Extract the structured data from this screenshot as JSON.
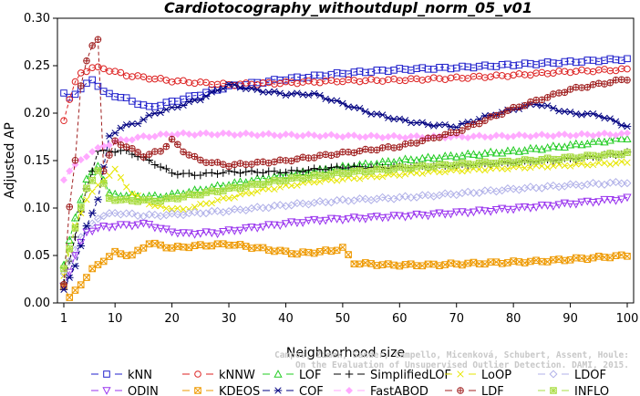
{
  "chart_data": {
    "type": "line",
    "title": "Cardiotocography_withoutdupl_norm_05_v01",
    "xlabel": "Neighborhood size",
    "ylabel": "Adjusted AP",
    "xlim": [
      1,
      100
    ],
    "ylim": [
      0.0,
      0.3
    ],
    "x_ticks": [
      "1",
      "10",
      "20",
      "30",
      "40",
      "50",
      "60",
      "70",
      "80",
      "90",
      "100"
    ],
    "y_ticks": [
      "0.00",
      "0.05",
      "0.10",
      "0.15",
      "0.20",
      "0.25",
      "0.30"
    ],
    "grid": false,
    "legend_position": "bottom",
    "watermark": "Campos, Zimek, Sander, Campello, Micenková, Schubert, Assent, Houle: On the Evaluation of Unsupervised Outlier Detection. DAMI, 2015.",
    "series": [
      {
        "name": "kNN",
        "color": "#2222cc",
        "marker": "square",
        "line": "dashed",
        "anchors": [
          [
            1,
            0.22
          ],
          [
            2,
            0.217
          ],
          [
            4,
            0.225
          ],
          [
            6,
            0.236
          ],
          [
            8,
            0.222
          ],
          [
            12,
            0.215
          ],
          [
            16,
            0.206
          ],
          [
            20,
            0.212
          ],
          [
            25,
            0.22
          ],
          [
            30,
            0.228
          ],
          [
            40,
            0.236
          ],
          [
            50,
            0.242
          ],
          [
            60,
            0.246
          ],
          [
            70,
            0.248
          ],
          [
            80,
            0.251
          ],
          [
            90,
            0.254
          ],
          [
            100,
            0.257
          ]
        ]
      },
      {
        "name": "kNNW",
        "color": "#dd2222",
        "marker": "circle",
        "line": "dashed",
        "anchors": [
          [
            1,
            0.193
          ],
          [
            2,
            0.215
          ],
          [
            3,
            0.232
          ],
          [
            4,
            0.242
          ],
          [
            6,
            0.248
          ],
          [
            8,
            0.247
          ],
          [
            12,
            0.24
          ],
          [
            20,
            0.234
          ],
          [
            30,
            0.23
          ],
          [
            40,
            0.232
          ],
          [
            50,
            0.234
          ],
          [
            60,
            0.235
          ],
          [
            70,
            0.237
          ],
          [
            80,
            0.24
          ],
          [
            90,
            0.244
          ],
          [
            100,
            0.246
          ]
        ]
      },
      {
        "name": "LOF",
        "color": "#22cc22",
        "marker": "triangle-up",
        "line": "dashed",
        "anchors": [
          [
            1,
            0.04
          ],
          [
            3,
            0.09
          ],
          [
            5,
            0.13
          ],
          [
            7,
            0.145
          ],
          [
            9,
            0.115
          ],
          [
            12,
            0.113
          ],
          [
            18,
            0.112
          ],
          [
            24,
            0.118
          ],
          [
            30,
            0.125
          ],
          [
            40,
            0.135
          ],
          [
            50,
            0.143
          ],
          [
            60,
            0.15
          ],
          [
            70,
            0.155
          ],
          [
            80,
            0.16
          ],
          [
            90,
            0.166
          ],
          [
            100,
            0.174
          ]
        ]
      },
      {
        "name": "SimplifiedLOF",
        "color": "#000000",
        "marker": "plus",
        "line": "dashed",
        "anchors": [
          [
            1,
            0.02
          ],
          [
            3,
            0.07
          ],
          [
            5,
            0.12
          ],
          [
            7,
            0.16
          ],
          [
            9,
            0.16
          ],
          [
            12,
            0.16
          ],
          [
            16,
            0.15
          ],
          [
            20,
            0.137
          ],
          [
            24,
            0.135
          ],
          [
            30,
            0.138
          ],
          [
            40,
            0.138
          ],
          [
            50,
            0.143
          ],
          [
            60,
            0.143
          ],
          [
            70,
            0.145
          ],
          [
            80,
            0.148
          ],
          [
            90,
            0.152
          ],
          [
            100,
            0.158
          ]
        ]
      },
      {
        "name": "LoOP",
        "color": "#e6e600",
        "marker": "x",
        "line": "dashed",
        "anchors": [
          [
            1,
            0.03
          ],
          [
            3,
            0.08
          ],
          [
            5,
            0.11
          ],
          [
            8,
            0.13
          ],
          [
            10,
            0.14
          ],
          [
            13,
            0.115
          ],
          [
            17,
            0.102
          ],
          [
            22,
            0.098
          ],
          [
            28,
            0.108
          ],
          [
            35,
            0.118
          ],
          [
            45,
            0.128
          ],
          [
            55,
            0.133
          ],
          [
            65,
            0.138
          ],
          [
            75,
            0.141
          ],
          [
            85,
            0.144
          ],
          [
            100,
            0.148
          ]
        ]
      },
      {
        "name": "LDOF",
        "color": "#b0b0e8",
        "marker": "diamond",
        "line": "dashed",
        "anchors": [
          [
            1,
            0.03
          ],
          [
            4,
            0.07
          ],
          [
            7,
            0.09
          ],
          [
            10,
            0.095
          ],
          [
            15,
            0.092
          ],
          [
            20,
            0.093
          ],
          [
            30,
            0.097
          ],
          [
            40,
            0.103
          ],
          [
            50,
            0.108
          ],
          [
            60,
            0.111
          ],
          [
            70,
            0.115
          ],
          [
            80,
            0.12
          ],
          [
            90,
            0.124
          ],
          [
            100,
            0.127
          ]
        ]
      },
      {
        "name": "ODIN",
        "color": "#9933ee",
        "marker": "triangle-down",
        "line": "dashed",
        "anchors": [
          [
            1,
            0.017
          ],
          [
            3,
            0.05
          ],
          [
            5,
            0.075
          ],
          [
            8,
            0.08
          ],
          [
            12,
            0.082
          ],
          [
            16,
            0.083
          ],
          [
            18,
            0.078
          ],
          [
            22,
            0.073
          ],
          [
            28,
            0.074
          ],
          [
            35,
            0.08
          ],
          [
            45,
            0.087
          ],
          [
            55,
            0.09
          ],
          [
            65,
            0.093
          ],
          [
            75,
            0.097
          ],
          [
            85,
            0.102
          ],
          [
            100,
            0.11
          ]
        ]
      },
      {
        "name": "KDEOS",
        "color": "#ee9900",
        "marker": "square-x",
        "line": "dashed",
        "anchors": [
          [
            1,
            0.018
          ],
          [
            2,
            0.005
          ],
          [
            4,
            0.02
          ],
          [
            6,
            0.035
          ],
          [
            8,
            0.045
          ],
          [
            10,
            0.053
          ],
          [
            13,
            0.05
          ],
          [
            16,
            0.063
          ],
          [
            20,
            0.058
          ],
          [
            24,
            0.06
          ],
          [
            30,
            0.062
          ],
          [
            35,
            0.058
          ],
          [
            42,
            0.052
          ],
          [
            48,
            0.055
          ],
          [
            50,
            0.058
          ],
          [
            52,
            0.042
          ],
          [
            58,
            0.04
          ],
          [
            65,
            0.04
          ],
          [
            75,
            0.042
          ],
          [
            85,
            0.044
          ],
          [
            100,
            0.05
          ]
        ]
      },
      {
        "name": "COF",
        "color": "#000080",
        "marker": "asterisk",
        "line": "dashed",
        "anchors": [
          [
            1,
            0.013
          ],
          [
            3,
            0.04
          ],
          [
            5,
            0.08
          ],
          [
            7,
            0.11
          ],
          [
            9,
            0.175
          ],
          [
            11,
            0.185
          ],
          [
            14,
            0.19
          ],
          [
            17,
            0.2
          ],
          [
            20,
            0.205
          ],
          [
            25,
            0.215
          ],
          [
            30,
            0.23
          ],
          [
            35,
            0.224
          ],
          [
            40,
            0.22
          ],
          [
            45,
            0.22
          ],
          [
            50,
            0.21
          ],
          [
            55,
            0.2
          ],
          [
            60,
            0.193
          ],
          [
            65,
            0.188
          ],
          [
            70,
            0.186
          ],
          [
            75,
            0.196
          ],
          [
            80,
            0.204
          ],
          [
            84,
            0.21
          ],
          [
            87,
            0.205
          ],
          [
            90,
            0.2
          ],
          [
            95,
            0.198
          ],
          [
            100,
            0.186
          ]
        ]
      },
      {
        "name": "FastABOD",
        "color": "#ffaaff",
        "marker": "diamond-filled",
        "line": "dashed",
        "anchors": [
          [
            1,
            0.13
          ],
          [
            2,
            0.14
          ],
          [
            4,
            0.15
          ],
          [
            6,
            0.16
          ],
          [
            8,
            0.165
          ],
          [
            10,
            0.17
          ],
          [
            15,
            0.175
          ],
          [
            20,
            0.178
          ],
          [
            30,
            0.178
          ],
          [
            40,
            0.177
          ],
          [
            50,
            0.176
          ],
          [
            60,
            0.175
          ],
          [
            70,
            0.175
          ],
          [
            80,
            0.176
          ],
          [
            90,
            0.177
          ],
          [
            100,
            0.178
          ]
        ]
      },
      {
        "name": "LDF",
        "color": "#a02020",
        "marker": "circle-plus",
        "line": "dashed",
        "anchors": [
          [
            1,
            0.02
          ],
          [
            2,
            0.1
          ],
          [
            3,
            0.15
          ],
          [
            4,
            0.23
          ],
          [
            5,
            0.255
          ],
          [
            6,
            0.27
          ],
          [
            7,
            0.278
          ],
          [
            8,
            0.14
          ],
          [
            10,
            0.17
          ],
          [
            12,
            0.165
          ],
          [
            15,
            0.155
          ],
          [
            18,
            0.16
          ],
          [
            20,
            0.172
          ],
          [
            22,
            0.16
          ],
          [
            25,
            0.15
          ],
          [
            30,
            0.145
          ],
          [
            40,
            0.15
          ],
          [
            50,
            0.158
          ],
          [
            60,
            0.165
          ],
          [
            70,
            0.18
          ],
          [
            80,
            0.205
          ],
          [
            90,
            0.225
          ],
          [
            100,
            0.236
          ]
        ]
      },
      {
        "name": "INFLO",
        "color": "#aadd44",
        "marker": "square-star",
        "line": "dashed",
        "anchors": [
          [
            1,
            0.035
          ],
          [
            3,
            0.08
          ],
          [
            5,
            0.12
          ],
          [
            7,
            0.14
          ],
          [
            9,
            0.11
          ],
          [
            12,
            0.108
          ],
          [
            18,
            0.108
          ],
          [
            24,
            0.114
          ],
          [
            30,
            0.12
          ],
          [
            40,
            0.13
          ],
          [
            50,
            0.137
          ],
          [
            60,
            0.142
          ],
          [
            70,
            0.146
          ],
          [
            80,
            0.149
          ],
          [
            90,
            0.153
          ],
          [
            100,
            0.158
          ]
        ]
      }
    ]
  }
}
